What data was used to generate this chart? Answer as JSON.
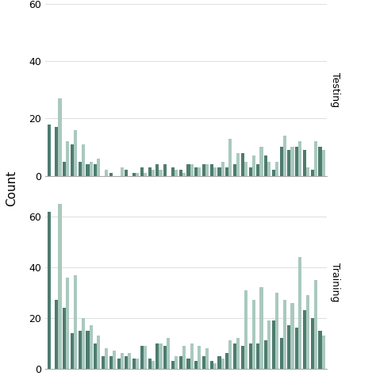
{
  "testing_dark": [
    18,
    17,
    5,
    11,
    5,
    4,
    4,
    0,
    1,
    0,
    2,
    1,
    3,
    3,
    4,
    4,
    3,
    2,
    4,
    3,
    4,
    4,
    3,
    3,
    4,
    8,
    3,
    4,
    7,
    2,
    10,
    9,
    10,
    9,
    2,
    10
  ],
  "testing_light": [
    0,
    27,
    12,
    16,
    11,
    5,
    6,
    2,
    0,
    3,
    0,
    1,
    1,
    2,
    2,
    0,
    2,
    1,
    4,
    3,
    4,
    3,
    5,
    13,
    8,
    5,
    7,
    10,
    5,
    5,
    14,
    10,
    12,
    3,
    12,
    9
  ],
  "training_dark": [
    62,
    27,
    24,
    14,
    15,
    15,
    10,
    5,
    5,
    4,
    5,
    4,
    9,
    4,
    10,
    9,
    3,
    5,
    4,
    3,
    5,
    3,
    5,
    6,
    10,
    9,
    10,
    10,
    11,
    19,
    12,
    17,
    16,
    23,
    20,
    15
  ],
  "training_light": [
    0,
    65,
    36,
    37,
    20,
    17,
    13,
    8,
    7,
    6,
    6,
    4,
    9,
    3,
    10,
    12,
    5,
    9,
    10,
    9,
    8,
    2,
    4,
    11,
    12,
    31,
    27,
    32,
    19,
    30,
    27,
    26,
    44,
    29,
    35,
    13
  ],
  "color_dark": "#4d7c6f",
  "color_light": "#aac9be",
  "background_color": "#ffffff",
  "grid_color": "#e0e0e0",
  "ylabel": "Count",
  "yticks_testing": [
    0,
    20,
    40,
    60
  ],
  "yticks_training": [
    0,
    20,
    40,
    60
  ],
  "ylim_testing": [
    0,
    60
  ],
  "ylim_training": [
    0,
    68
  ],
  "label_testing": "Testing",
  "label_training": "Training"
}
